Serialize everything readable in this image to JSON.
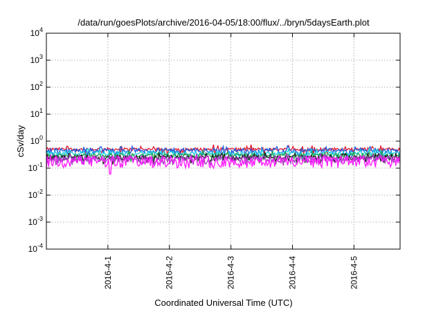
{
  "chart_data": {
    "type": "line",
    "title": "/data/run/goesPlots/archive/2016-04-05/18:00/flux/../bryn/5daysEarth.plot",
    "xlabel": "Coordinated Universal Time (UTC)",
    "ylabel": "cSv/day",
    "yscale": "log",
    "ylim": [
      0.0001,
      10000
    ],
    "y_ticks": [
      {
        "base": "10",
        "exp": "-4",
        "value": 0.0001
      },
      {
        "base": "10",
        "exp": "-3",
        "value": 0.001
      },
      {
        "base": "10",
        "exp": "-2",
        "value": 0.01
      },
      {
        "base": "10",
        "exp": "-1",
        "value": 0.1
      },
      {
        "base": "10",
        "exp": "0",
        "value": 1
      },
      {
        "base": "10",
        "exp": "1",
        "value": 10
      },
      {
        "base": "10",
        "exp": "2",
        "value": 100
      },
      {
        "base": "10",
        "exp": "3",
        "value": 1000
      },
      {
        "base": "10",
        "exp": "4",
        "value": 10000
      }
    ],
    "xlim": [
      "2016-03-31 00:00",
      "2016-04-05 18:00"
    ],
    "x_ticks": [
      {
        "label": "2016-4-1",
        "date": "2016-04-01 00:00"
      },
      {
        "label": "2016-4-2",
        "date": "2016-04-02 00:00"
      },
      {
        "label": "2016-4-3",
        "date": "2016-04-03 00:00"
      },
      {
        "label": "2016-4-4",
        "date": "2016-04-04 00:00"
      },
      {
        "label": "2016-4-5",
        "date": "2016-04-05 00:00"
      }
    ],
    "grid": true,
    "series": [
      {
        "color": "#e0203a",
        "level": 0.5,
        "amplitude": 0.07
      },
      {
        "color": "#2060e0",
        "level": 0.45,
        "amplitude": 0.09
      },
      {
        "color": "#20d0e0",
        "level": 0.36,
        "amplitude": 0.06
      },
      {
        "color": "#20a050",
        "level": 0.3,
        "amplitude": 0.05
      },
      {
        "color": "#202020",
        "level": 0.25,
        "amplitude": 0.05
      },
      {
        "color": "#a040c0",
        "level": 0.22,
        "amplitude": 0.06
      },
      {
        "color": "#ff20ff",
        "level": 0.19,
        "amplitude": 0.09
      }
    ]
  }
}
